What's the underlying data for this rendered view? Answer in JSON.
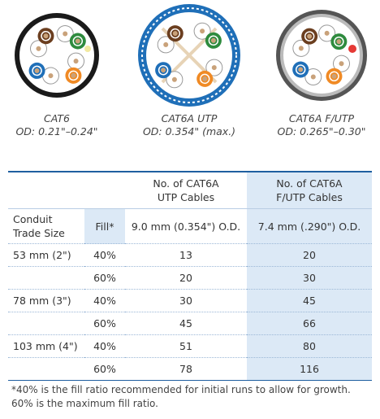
{
  "cables": [
    {
      "name": "CAT6",
      "od": "OD: 0.21\"–0.24\""
    },
    {
      "name": "CAT6A UTP",
      "od": "OD: 0.354\" (max.)"
    },
    {
      "name": "CAT6A F/UTP",
      "od": "OD: 0.265\"–0.30\""
    }
  ],
  "table": {
    "headers": {
      "utp": "No. of CAT6A\nUTP Cables",
      "futp": "No. of CAT6A\nF/UTP Cables"
    },
    "subheaders": {
      "size": "Conduit\nTrade Size",
      "fill": "Fill*",
      "utp": "9.0 mm (0.354\") O.D.",
      "futp": "7.4 mm (.290\") O.D."
    },
    "conduits": [
      {
        "size": "53 mm (2\")",
        "fills": [
          {
            "fill": "40%",
            "utp": "13",
            "futp": "20"
          },
          {
            "fill": "60%",
            "utp": "20",
            "futp": "30"
          }
        ]
      },
      {
        "size": "78 mm (3\")",
        "fills": [
          {
            "fill": "40%",
            "utp": "30",
            "futp": "45"
          },
          {
            "fill": "60%",
            "utp": "45",
            "futp": "66"
          }
        ]
      },
      {
        "size": "103 mm (4\")",
        "fills": [
          {
            "fill": "40%",
            "utp": "51",
            "futp": "80"
          },
          {
            "fill": "60%",
            "utp": "78",
            "futp": "116"
          }
        ]
      }
    ]
  },
  "footnote": [
    "*40% is the fill ratio recommended for initial runs to allow for growth.",
    "60% is the maximum fill ratio."
  ]
}
